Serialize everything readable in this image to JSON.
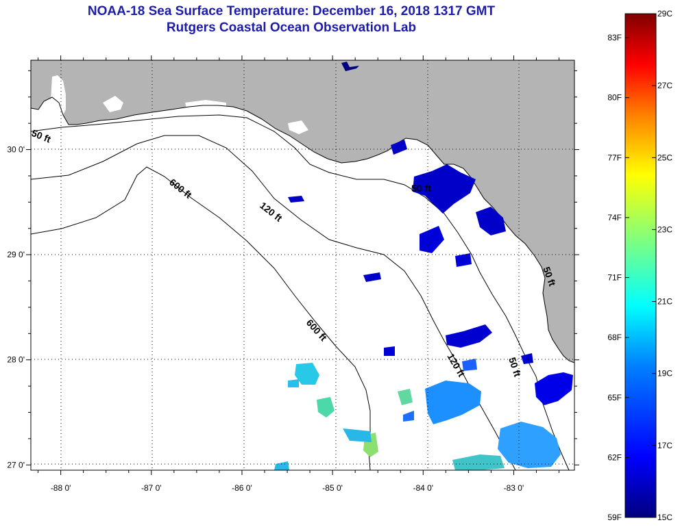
{
  "title": {
    "line1": "NOAA-18 Sea Surface Temperature:  December 16, 2018 1317 GMT",
    "line2": "Rutgers Coastal Ocean Observation Lab"
  },
  "axes": {
    "lon_ticks": [
      {
        "value": -88,
        "label": "-88 0'"
      },
      {
        "value": -87,
        "label": "-87 0'"
      },
      {
        "value": -86,
        "label": "-86 0'"
      },
      {
        "value": -85,
        "label": "-85 0'"
      },
      {
        "value": -84,
        "label": "-84 0'"
      },
      {
        "value": -83,
        "label": "-83 0'"
      }
    ],
    "lat_ticks": [
      {
        "value": 30,
        "label": "30 0'"
      },
      {
        "value": 29,
        "label": "29 0'"
      },
      {
        "value": 28,
        "label": "28 0'"
      },
      {
        "value": 27,
        "label": "27 0'"
      }
    ],
    "lon_range": [
      -88.33,
      -82.33
    ],
    "lat_range": [
      26.95,
      30.85
    ]
  },
  "contours": [
    {
      "label": "50 ft"
    },
    {
      "label": "600 ft"
    },
    {
      "label": "120 ft"
    },
    {
      "label": "50 ft"
    },
    {
      "label": "600 ft"
    },
    {
      "label": "120 ft"
    },
    {
      "label": "50 ft"
    },
    {
      "label": "50 ft"
    }
  ],
  "colorbar": {
    "fahrenheit": [
      {
        "value": 83,
        "label": "83F"
      },
      {
        "value": 80,
        "label": "80F"
      },
      {
        "value": 77,
        "label": "77F"
      },
      {
        "value": 74,
        "label": "74F"
      },
      {
        "value": 71,
        "label": "71F"
      },
      {
        "value": 68,
        "label": "68F"
      },
      {
        "value": 65,
        "label": "65F"
      },
      {
        "value": 62,
        "label": "62F"
      },
      {
        "value": 59,
        "label": "59F"
      }
    ],
    "celsius": [
      {
        "value": 29,
        "label": "29C"
      },
      {
        "value": 27,
        "label": "27C"
      },
      {
        "value": 25,
        "label": "25C"
      },
      {
        "value": 23,
        "label": "23C"
      },
      {
        "value": 21,
        "label": "21C"
      },
      {
        "value": 19,
        "label": "19C"
      },
      {
        "value": 17,
        "label": "17C"
      },
      {
        "value": 15,
        "label": "15C"
      }
    ],
    "range_c": [
      15,
      29
    ],
    "colors": [
      "#00007f",
      "#0000ff",
      "#007fff",
      "#00ffff",
      "#7fff7f",
      "#ffff00",
      "#ff7f00",
      "#ff0000",
      "#7f0000"
    ]
  },
  "colors": {
    "land": "#b4b4b4",
    "ocean_nodata": "#ffffff",
    "title": "#1c1ca8"
  }
}
